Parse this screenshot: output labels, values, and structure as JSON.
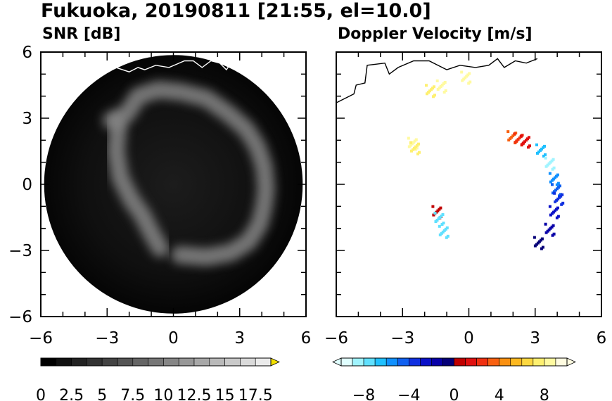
{
  "title": "Fukuoka, 20190811 [21:55, el=10.0]",
  "colors": {
    "snr_background": "#000000",
    "snr_echo": "#8c8c8c",
    "coastline_on_dark": "#ffffff",
    "coastline_on_light": "#000000"
  },
  "chart_data": [
    {
      "type": "heatmap",
      "title": "SNR [dB]",
      "x_ticks": [
        "−6",
        "−3",
        "0",
        "3",
        "6"
      ],
      "y_ticks": [
        "6",
        "3",
        "0",
        "−3",
        "−6"
      ],
      "xlim": [
        -6,
        6
      ],
      "ylim": [
        -6,
        6
      ],
      "colormap": "grayscale",
      "colorbar": {
        "range": [
          0,
          18.75
        ],
        "extend": "max",
        "tick_values": [
          0,
          2.5,
          5,
          7.5,
          10,
          12.5,
          15,
          17.5
        ],
        "tick_labels": [
          "0",
          "2.5",
          "5",
          "7.5",
          "10",
          "12.5",
          "15",
          "17.5"
        ]
      },
      "echo_bands": [
        {
          "x": [
            -2.8,
            -2.1,
            -1.6,
            -0.7,
            0.3,
            1.5,
            2.5,
            3.3,
            3.8,
            4.1,
            4.2,
            4.1,
            3.9,
            3.4,
            2.6,
            1.5,
            0.3
          ],
          "y": [
            2.9,
            3.2,
            4.0,
            4.3,
            4.2,
            3.9,
            3.2,
            2.5,
            1.7,
            0.8,
            -0.2,
            -1.0,
            -1.8,
            -2.6,
            -3.1,
            -3.3,
            -3.2
          ]
        },
        {
          "x": [
            -2.5,
            -2.6,
            -2.4,
            -1.9,
            -1.4,
            -1.0,
            -0.6
          ],
          "y": [
            2.7,
            1.5,
            0.3,
            -0.7,
            -1.4,
            -2.2,
            -2.9
          ]
        }
      ],
      "coastline": {
        "x": [
          -2.6,
          -2.0,
          -1.6,
          -1.3,
          -0.8,
          -0.2,
          0.5,
          0.9,
          1.3,
          1.7,
          2.1,
          2.4,
          2.6
        ],
        "y": [
          5.3,
          5.1,
          5.3,
          5.2,
          5.4,
          5.3,
          5.6,
          5.6,
          5.3,
          5.6,
          5.5,
          5.2,
          5.5
        ]
      }
    },
    {
      "type": "heatmap",
      "title": "Doppler Velocity [m/s]",
      "x_ticks": [
        "−6",
        "−3",
        "0",
        "3",
        "6"
      ],
      "y_ticks": [
        "6",
        "3",
        "0",
        "−3",
        "−6"
      ],
      "xlim": [
        -6,
        6
      ],
      "ylim": [
        -6,
        6
      ],
      "colormap": "diverging",
      "colorbar": {
        "range": [
          -10,
          10
        ],
        "extend": "both",
        "tick_values": [
          -8,
          -4,
          0,
          4,
          8
        ],
        "tick_labels": [
          "−8",
          "−4",
          "0",
          "4",
          "8"
        ],
        "negative_colors": [
          "#e0ffff",
          "#a0f4ff",
          "#60e0ff",
          "#20c0ff",
          "#1090ff",
          "#1060f0",
          "#1030e0",
          "#0a10c8",
          "#0800a8",
          "#050078"
        ],
        "positive_colors": [
          "#c00000",
          "#e01010",
          "#f03010",
          "#f86010",
          "#fa9010",
          "#fcb820",
          "#fdd840",
          "#fef070",
          "#fffaa0",
          "#fffce0"
        ]
      },
      "velocity_cells": [
        {
          "x": -1.8,
          "y": 4.3,
          "v": 7.5
        },
        {
          "x": -1.3,
          "y": 4.5,
          "v": 8.2
        },
        {
          "x": -0.2,
          "y": 4.9,
          "v": 8.5
        },
        {
          "x": -2.6,
          "y": 1.9,
          "v": 8.0
        },
        {
          "x": -2.5,
          "y": 1.7,
          "v": 7.2
        },
        {
          "x": 1.9,
          "y": 2.2,
          "v": 3.0
        },
        {
          "x": 2.2,
          "y": 2.1,
          "v": 2.0
        },
        {
          "x": 2.5,
          "y": 2.0,
          "v": 1.0
        },
        {
          "x": 3.2,
          "y": 1.6,
          "v": -7.0
        },
        {
          "x": 3.6,
          "y": 1.0,
          "v": -9.0
        },
        {
          "x": 3.8,
          "y": 0.3,
          "v": -6.0
        },
        {
          "x": 3.9,
          "y": -0.2,
          "v": -5.0
        },
        {
          "x": 4.0,
          "y": -0.6,
          "v": -4.0
        },
        {
          "x": 3.8,
          "y": -1.2,
          "v": -3.0
        },
        {
          "x": 3.6,
          "y": -2.0,
          "v": -2.0
        },
        {
          "x": 3.1,
          "y": -2.6,
          "v": -1.0
        },
        {
          "x": -1.5,
          "y": -1.2,
          "v": 0.5
        },
        {
          "x": -1.4,
          "y": -1.5,
          "v": -8.0
        },
        {
          "x": -1.2,
          "y": -2.1,
          "v": -7.5
        }
      ],
      "coastline": {
        "x": [
          -6.0,
          -5.2,
          -5.1,
          -4.7,
          -4.6,
          -3.8,
          -3.6,
          -3.2,
          -2.5,
          -1.8,
          -1.0,
          -0.4,
          0.3,
          0.9,
          1.3,
          1.6,
          2.1,
          2.6,
          3.1
        ],
        "y": [
          3.7,
          4.1,
          4.5,
          4.6,
          5.4,
          5.5,
          5.0,
          5.3,
          5.6,
          5.6,
          5.2,
          5.4,
          5.3,
          5.4,
          5.7,
          5.3,
          5.6,
          5.5,
          5.7
        ]
      }
    }
  ]
}
